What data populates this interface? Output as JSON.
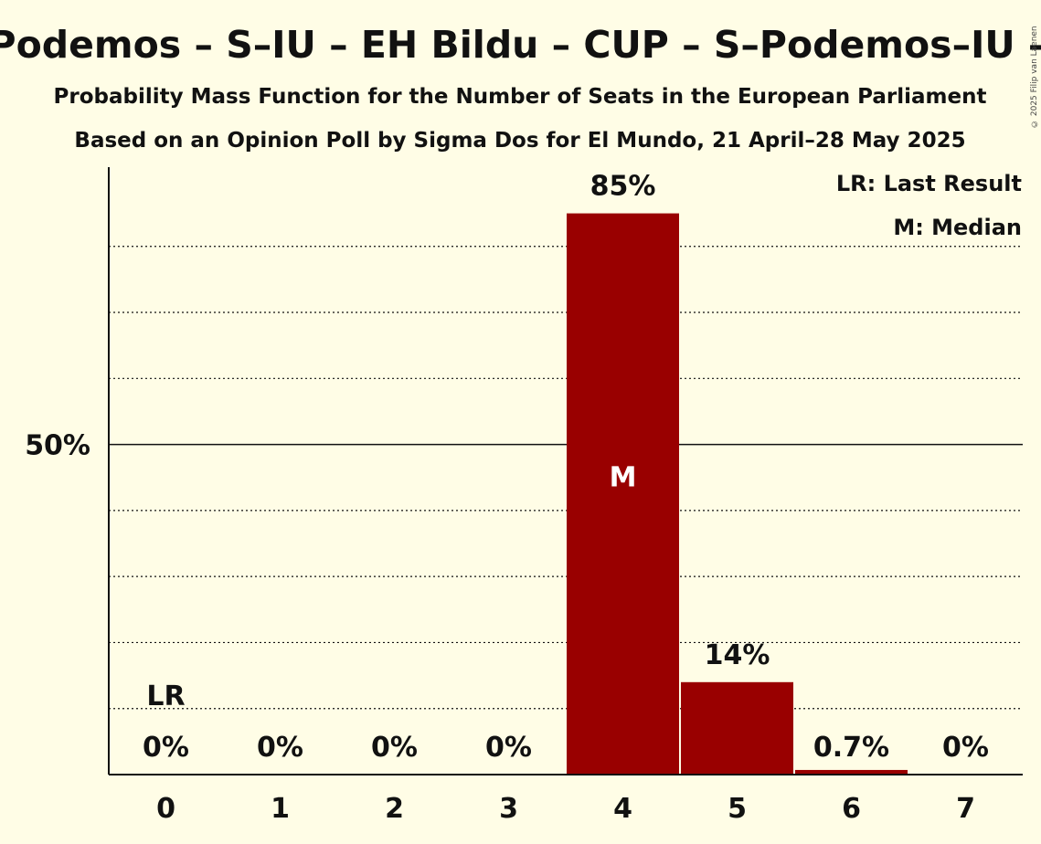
{
  "title": "Sumar–Podemos – S–IU – EH Bildu – CUP – S–Podemos–IU – PACMA",
  "subtitle1": "Probability Mass Function for the Number of Seats in the European Parliament",
  "subtitle2": "Based on an Opinion Poll by Sigma Dos for El Mundo, 21 April–28 May 2025",
  "credit": "© 2025 Filip van Laenen",
  "legend": {
    "lr": "LR: Last Result",
    "median": "M: Median"
  },
  "colors": {
    "background": "#fffde6",
    "bar": "#990000",
    "text": "#111111"
  },
  "chart_data": {
    "type": "bar",
    "categories": [
      "0",
      "1",
      "2",
      "3",
      "4",
      "5",
      "6",
      "7"
    ],
    "values": [
      0,
      0,
      0,
      0,
      85,
      14,
      0.7,
      0
    ],
    "labels": [
      "0%",
      "0%",
      "0%",
      "0%",
      "85%",
      "14%",
      "0.7%",
      "0%"
    ],
    "ylim": [
      0,
      92
    ],
    "yticks": [
      {
        "value": 50,
        "label": "50%"
      }
    ],
    "minor_gridlines": [
      10,
      20,
      30,
      40,
      60,
      70,
      80
    ],
    "last_result_index": 0,
    "last_result_label": "LR",
    "median_index": 4,
    "median_label": "M",
    "legend_position": "top-right",
    "grid": true
  }
}
